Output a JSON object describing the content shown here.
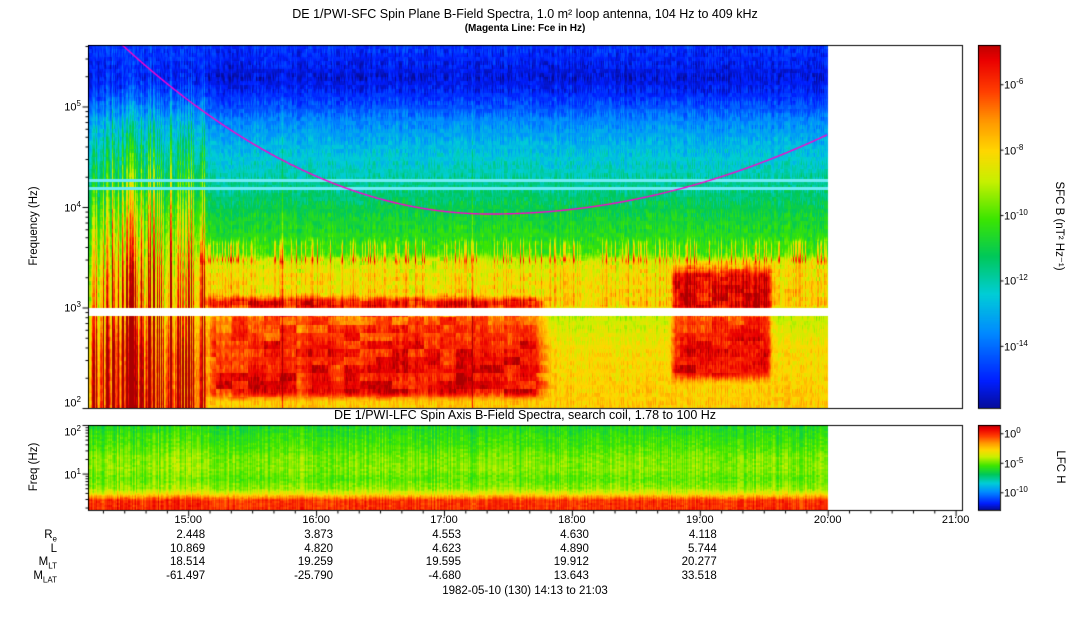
{
  "figure": {
    "background": "#ffffff"
  },
  "chart_data": {
    "type": "heatmap",
    "time_axis": {
      "date": "1982-05-10",
      "day_of_year": "130",
      "start": "14:13",
      "end": "21:03",
      "tick_labels": [
        "15:00",
        "16:00",
        "17:00",
        "18:00",
        "19:00",
        "20:00",
        "21:00"
      ],
      "data_end": "20:00"
    },
    "caption": "1982-05-10 (130) 14:13 to 21:03",
    "panels": [
      {
        "id": "sfc",
        "type": "heatmap",
        "title": "DE 1/PWI-SFC  Spin Plane B-Field Spectra, 1.0 m² loop antenna, 104 Hz to 409 kHz",
        "subtitle": "(Magenta Line: Fce in Hz)",
        "ylabel": "Frequency (Hz)",
        "y_scale": "log",
        "y_range_hz": [
          100,
          409000
        ],
        "y_tick_exponents": [
          5,
          4,
          3,
          2
        ],
        "colorbar": {
          "label": "SFC B (nT² Hz⁻¹)",
          "scale": "log",
          "tick_exponents": [
            -6,
            -8,
            -10,
            -12,
            -14
          ],
          "range_exponents": [
            -4.8,
            -15.9
          ],
          "colormap": "rainbow"
        },
        "fce_line": {
          "label": "Fce (electron cyclotron frequency)",
          "color": "#FF00CC",
          "min_hz": 8500,
          "time_of_min": "17:25",
          "hz_at_data_end": 52000,
          "model": {
            "log10_min": 3.93,
            "t_min_frac": 0.46,
            "k_left": 9.5,
            "k_right": 5.3
          }
        },
        "features": [
          {
            "name": "broadband-bursts",
            "t_start": "14:14",
            "t_end": "15:08",
            "freq_hz": [
              110,
              40000
            ],
            "level": "strong vertical streaks"
          },
          {
            "name": "intense-low-band",
            "t_start": "15:10",
            "t_end": "17:47",
            "freq_hz": [
              140,
              1300
            ],
            "level": "very strong (red/orange)"
          },
          {
            "name": "mid-band-emissions",
            "t_start": "15:05",
            "t_end": "20:00",
            "freq_hz": [
              1000,
              3200
            ],
            "level": "moderate (yellow-green)"
          },
          {
            "name": "late-burst",
            "t_start": "18:47",
            "t_end": "19:33",
            "freq_hz": [
              200,
              2800
            ],
            "level": "very strong (red)"
          },
          {
            "name": "receiver-gap",
            "freq_hz": [
              830,
              1000
            ],
            "level": "white horizontal band (no data)"
          },
          {
            "name": "narrowband-lines",
            "freq_hz": [
              15500,
              18500
            ],
            "level": "cyan interference lines"
          }
        ]
      },
      {
        "id": "lfc",
        "type": "heatmap",
        "title": "DE 1/PWI-LFC  Spin Axis B-Field Spectra, search coil, 1.78 to 100 Hz",
        "ylabel": "Freq (Hz)",
        "y_scale": "log",
        "y_range_hz": [
          1.78,
          100
        ],
        "y_tick_exponents": [
          2,
          1
        ],
        "colorbar": {
          "label": "LFC H",
          "scale": "log",
          "tick_exponents": [
            0,
            -5,
            -10
          ],
          "range_exponents": [
            1.4,
            -13.0
          ],
          "colormap": "rainbow"
        },
        "features": [
          {
            "name": "intense-lowest-band",
            "freq_hz": [
              1.78,
              3.2
            ],
            "level": "very strong (red), full duration"
          },
          {
            "name": "broadband-hiss",
            "freq_hz": [
              3.2,
              100
            ],
            "level": "moderate (green) with vertical striations"
          }
        ]
      }
    ],
    "ephemeris_table": {
      "columns": [
        "15:00",
        "16:00",
        "17:00",
        "18:00",
        "19:00"
      ],
      "rows": [
        {
          "label_main": "R",
          "label_sub": "e",
          "values": [
            "2.448",
            "3.873",
            "4.553",
            "4.630",
            "4.118"
          ]
        },
        {
          "label_main": "L",
          "label_sub": "",
          "values": [
            "10.869",
            "4.820",
            "4.623",
            "4.890",
            "5.744"
          ]
        },
        {
          "label_main": "M",
          "label_sub": "LT",
          "values": [
            "18.514",
            "19.259",
            "19.595",
            "19.912",
            "20.277"
          ]
        },
        {
          "label_main": "M",
          "label_sub": "LAT",
          "values": [
            "-61.497",
            "-25.790",
            "-4.680",
            "13.643",
            "33.518"
          ]
        }
      ]
    }
  }
}
